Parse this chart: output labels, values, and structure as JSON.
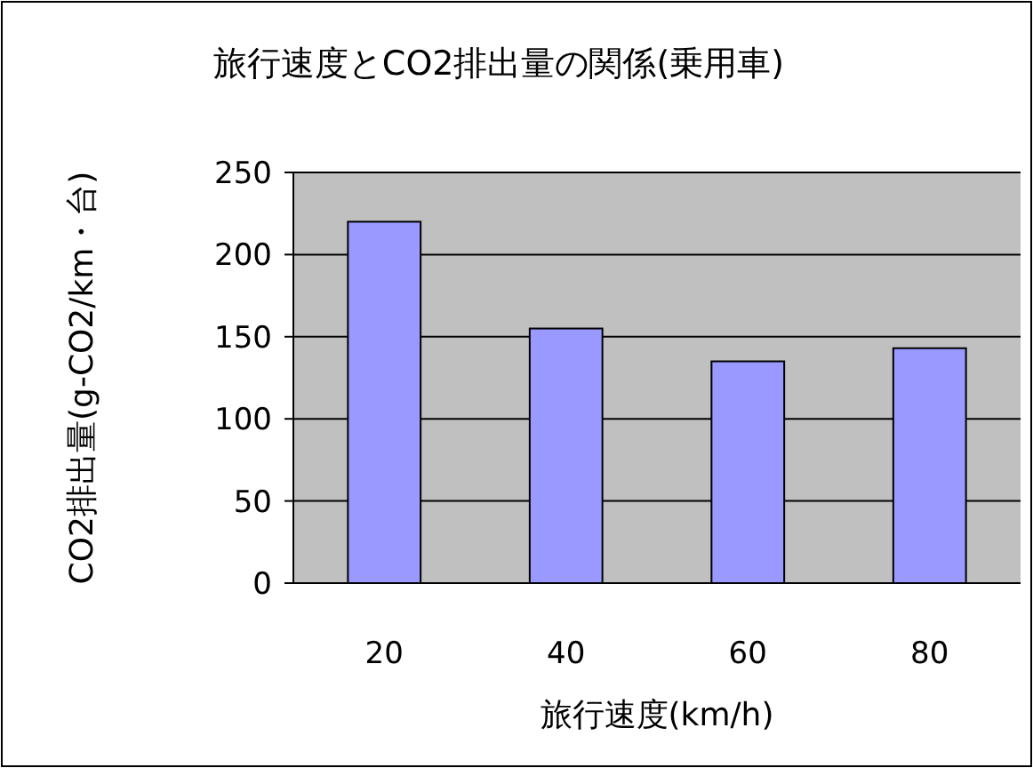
{
  "chart_data": {
    "type": "bar",
    "title": "旅行速度とCO2排出量の関係(乗用車)",
    "xlabel": "旅行速度(km/h)",
    "ylabel": "CO2排出量(g-CO2/km・台)",
    "categories": [
      "20",
      "40",
      "60",
      "80"
    ],
    "values": [
      220,
      155,
      135,
      143
    ],
    "color": "#9999ff",
    "ylim": [
      0,
      250
    ],
    "yticks": [
      0,
      50,
      100,
      150,
      200,
      250
    ],
    "grid": "y"
  }
}
